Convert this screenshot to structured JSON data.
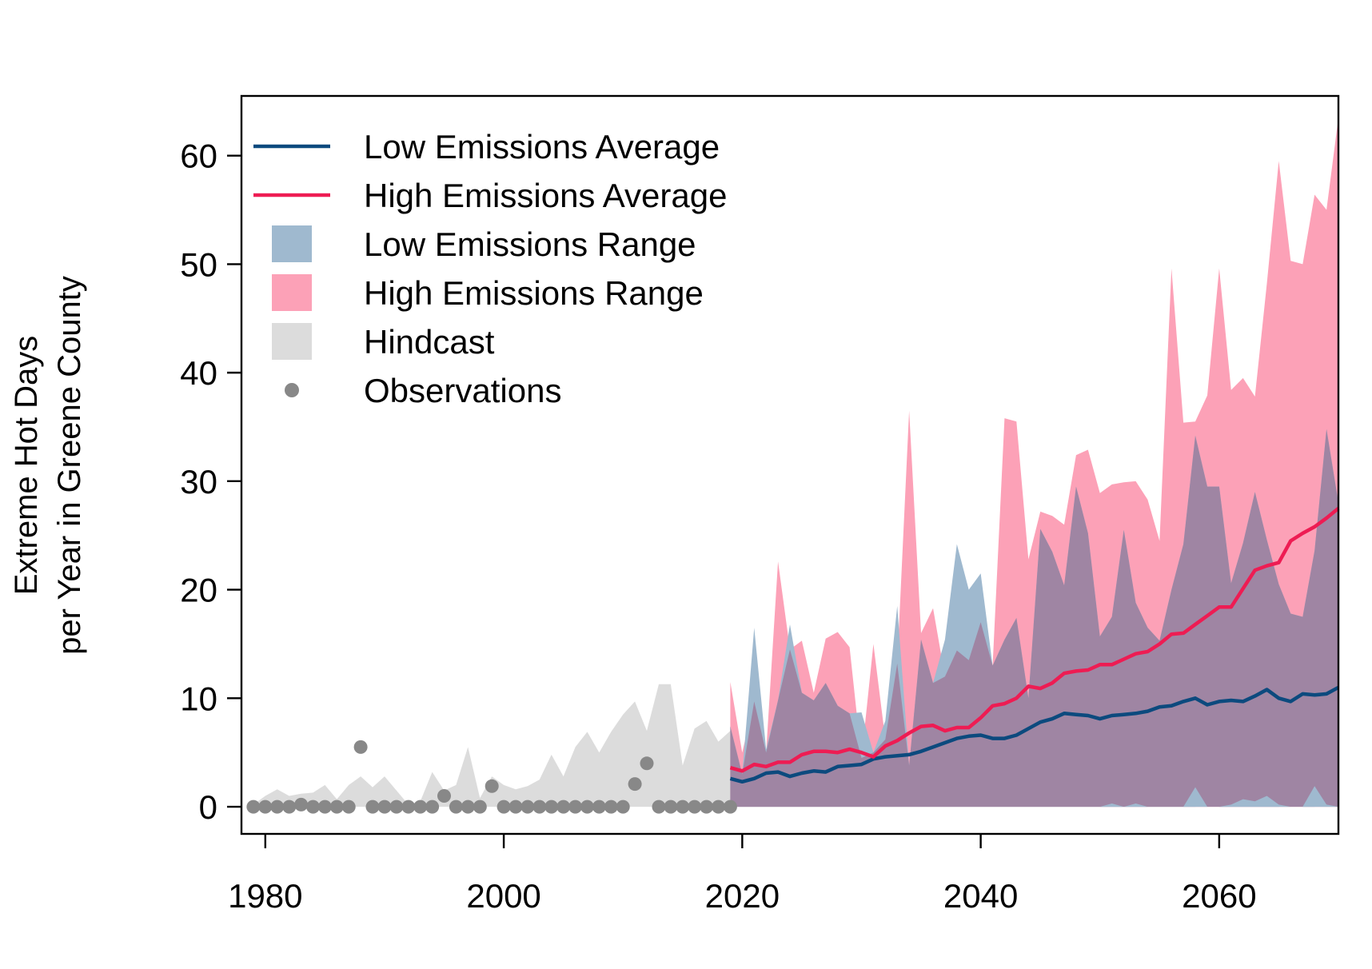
{
  "chart_data": {
    "type": "area",
    "ylabel_lines": [
      "Extreme Hot Days",
      "per Year in Greene County"
    ],
    "xlabel": "",
    "xlim": [
      1978,
      2070
    ],
    "ylim": [
      -2.5,
      65.5
    ],
    "x_ticks": [
      1980,
      2000,
      2020,
      2040,
      2060
    ],
    "y_ticks": [
      0,
      10,
      20,
      30,
      40,
      50,
      60
    ],
    "grid": false,
    "legend_position": "top-left",
    "colors": {
      "low_avg": "#0c4a7e",
      "high_avg": "#ee1c53",
      "low_range": "#9fb9cf",
      "high_range": "#fca1b7",
      "overlap": "#9f85a3",
      "hindcast": "#dcdcdc",
      "observations": "#888888"
    },
    "legend": [
      {
        "label": "Low Emissions Average",
        "kind": "line",
        "color": "#0c4a7e"
      },
      {
        "label": "High Emissions Average",
        "kind": "line",
        "color": "#ee1c53"
      },
      {
        "label": "Low Emissions Range",
        "kind": "box",
        "color": "#9fb9cf"
      },
      {
        "label": "High Emissions Range",
        "kind": "box",
        "color": "#fca1b7"
      },
      {
        "label": "Hindcast",
        "kind": "box",
        "color": "#dcdcdc"
      },
      {
        "label": "Observations",
        "kind": "point",
        "color": "#888888"
      }
    ],
    "hindcast": {
      "x": [
        1979,
        1980,
        1981,
        1982,
        1983,
        1984,
        1985,
        1986,
        1987,
        1988,
        1989,
        1990,
        1991,
        1992,
        1993,
        1994,
        1995,
        1996,
        1997,
        1998,
        1999,
        2000,
        2001,
        2002,
        2003,
        2004,
        2005,
        2006,
        2007,
        2008,
        2009,
        2010,
        2011,
        2012,
        2013,
        2014,
        2015,
        2016,
        2017,
        2018,
        2019
      ],
      "ymax": [
        0.2,
        1.0,
        1.6,
        1.0,
        1.2,
        1.3,
        2.0,
        0.7,
        2.0,
        2.8,
        1.8,
        2.8,
        1.5,
        0.2,
        0.5,
        3.2,
        1.5,
        2.0,
        5.5,
        0.8,
        2.8,
        2.0,
        1.6,
        1.9,
        2.5,
        4.8,
        2.8,
        5.5,
        6.9,
        5.0,
        6.9,
        8.5,
        9.7,
        7.0,
        11.3,
        11.3,
        3.8,
        7.2,
        7.9,
        6.0,
        7.0
      ]
    },
    "observations": {
      "x": [
        1979,
        1980,
        1981,
        1982,
        1983,
        1984,
        1985,
        1986,
        1987,
        1988,
        1989,
        1990,
        1991,
        1992,
        1993,
        1994,
        1995,
        1996,
        1997,
        1998,
        1999,
        2000,
        2001,
        2002,
        2003,
        2004,
        2005,
        2006,
        2007,
        2008,
        2009,
        2010,
        2011,
        2012,
        2013,
        2014,
        2015,
        2016,
        2017,
        2018,
        2019
      ],
      "y": [
        0,
        0,
        0,
        0,
        0.2,
        0,
        0,
        0,
        0,
        5.5,
        0,
        0,
        0,
        0,
        0,
        0,
        1.0,
        0,
        0,
        0,
        1.9,
        0,
        0,
        0,
        0,
        0,
        0,
        0,
        0,
        0,
        0,
        0,
        2.1,
        4.0,
        0,
        0,
        0,
        0,
        0,
        0,
        0
      ]
    },
    "projections": {
      "x": [
        2019,
        2020,
        2021,
        2022,
        2023,
        2024,
        2025,
        2026,
        2027,
        2028,
        2029,
        2030,
        2031,
        2032,
        2033,
        2034,
        2035,
        2036,
        2037,
        2038,
        2039,
        2040,
        2041,
        2042,
        2043,
        2044,
        2045,
        2046,
        2047,
        2048,
        2049,
        2050,
        2051,
        2052,
        2053,
        2054,
        2055,
        2056,
        2057,
        2058,
        2059,
        2060,
        2061,
        2062,
        2063,
        2064,
        2065,
        2066,
        2067,
        2068,
        2069,
        2070
      ],
      "high_max": [
        11.5,
        5.0,
        9.7,
        5.0,
        22.6,
        14.5,
        15.3,
        10.5,
        15.5,
        16.1,
        14.7,
        4.5,
        15.0,
        6.2,
        13.2,
        36.5,
        16.0,
        18.3,
        12.0,
        14.4,
        13.5,
        17.0,
        13.0,
        35.8,
        35.5,
        22.8,
        27.2,
        26.8,
        26.0,
        32.4,
        32.9,
        28.9,
        29.7,
        29.9,
        30.0,
        28.3,
        24.5,
        49.6,
        35.4,
        35.5,
        37.9,
        49.6,
        38.4,
        39.5,
        37.8,
        48.2,
        59.5,
        50.3,
        50.0,
        56.4,
        55.0,
        63.5
      ],
      "high_min": [
        0,
        0,
        0,
        0,
        0,
        0,
        0,
        0,
        0,
        0,
        0,
        0,
        0,
        0,
        0,
        0,
        0,
        0,
        0,
        0,
        0,
        0,
        0,
        0,
        0,
        0,
        0,
        0,
        0,
        0,
        0,
        0,
        0,
        0,
        0,
        0,
        0,
        0,
        0,
        0,
        0,
        0,
        0,
        0,
        0,
        0,
        0,
        0,
        0,
        0,
        0,
        0
      ],
      "low_max": [
        7.4,
        3.0,
        16.5,
        5.3,
        9.8,
        16.8,
        10.5,
        9.8,
        11.4,
        9.3,
        8.6,
        8.7,
        5.0,
        7.9,
        18.5,
        3.8,
        15.4,
        11.4,
        15.4,
        24.2,
        20.0,
        21.5,
        13.0,
        15.4,
        17.4,
        10.0,
        25.6,
        23.5,
        20.4,
        29.5,
        25.2,
        15.7,
        17.5,
        25.5,
        18.8,
        16.5,
        15.3,
        20.0,
        24.2,
        34.2,
        29.5,
        29.5,
        20.6,
        24.3,
        29.0,
        24.6,
        20.5,
        17.8,
        17.5,
        23.6,
        34.8,
        28.0
      ],
      "low_min": [
        0,
        0,
        0,
        0,
        0,
        0,
        0,
        0,
        0,
        0,
        0,
        0,
        0,
        0,
        0,
        0,
        0,
        0,
        0,
        0,
        0,
        0,
        0,
        0,
        0,
        0,
        0,
        0,
        0,
        0,
        0,
        0,
        0,
        0,
        0,
        0,
        0,
        0,
        0,
        0,
        0.2,
        0,
        0,
        0,
        0,
        0,
        0,
        1.8,
        0,
        0,
        0.2,
        0
      ],
      "low_min_spikes": [
        0,
        0,
        0,
        0,
        0,
        0,
        0,
        0,
        0,
        0,
        0,
        0,
        0,
        0,
        0,
        0,
        0,
        0,
        0,
        0,
        0,
        0,
        0,
        0,
        0,
        0,
        0,
        0,
        0,
        0,
        0,
        0,
        0.3,
        0,
        0.3,
        0,
        0,
        0,
        0,
        1.8,
        0,
        0,
        0.2,
        0.7,
        0.5,
        1.0,
        0.2,
        0,
        0,
        1.9,
        0.2,
        0
      ],
      "high_avg": [
        3.6,
        3.3,
        3.9,
        3.7,
        4.1,
        4.1,
        4.8,
        5.1,
        5.1,
        5.0,
        5.3,
        5.0,
        4.6,
        5.6,
        6.1,
        6.8,
        7.4,
        7.5,
        7.0,
        7.3,
        7.3,
        8.2,
        9.3,
        9.5,
        10.0,
        11.1,
        10.9,
        11.4,
        12.3,
        12.5,
        12.6,
        13.1,
        13.1,
        13.6,
        14.1,
        14.3,
        15.0,
        15.9,
        16.0,
        16.8,
        17.6,
        18.4,
        18.4,
        20.1,
        21.8,
        22.2,
        22.5,
        24.5,
        25.2,
        25.8,
        26.6,
        27.5
      ],
      "low_avg": [
        2.6,
        2.3,
        2.6,
        3.1,
        3.2,
        2.8,
        3.1,
        3.3,
        3.2,
        3.7,
        3.8,
        3.9,
        4.4,
        4.6,
        4.7,
        4.8,
        5.1,
        5.5,
        5.9,
        6.3,
        6.5,
        6.6,
        6.3,
        6.3,
        6.6,
        7.2,
        7.8,
        8.1,
        8.6,
        8.5,
        8.4,
        8.1,
        8.4,
        8.5,
        8.6,
        8.8,
        9.2,
        9.3,
        9.7,
        10.0,
        9.4,
        9.7,
        9.8,
        9.7,
        10.2,
        10.8,
        10.0,
        9.7,
        10.4,
        10.3,
        10.4,
        11.0
      ]
    }
  }
}
